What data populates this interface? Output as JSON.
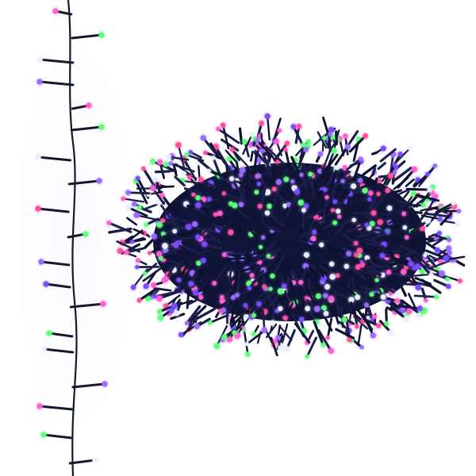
{
  "image": {
    "subject": "led-cluster-string-lights",
    "background_color": "#ffffff",
    "wire_color": "#141a2e",
    "cluster_wire_color": "#0d1230",
    "led_colors": [
      "#ff5fd2",
      "#5dff7a",
      "#9b6bff",
      "#e8f0ff",
      "#ff4fa0",
      "#7a4bff"
    ]
  }
}
